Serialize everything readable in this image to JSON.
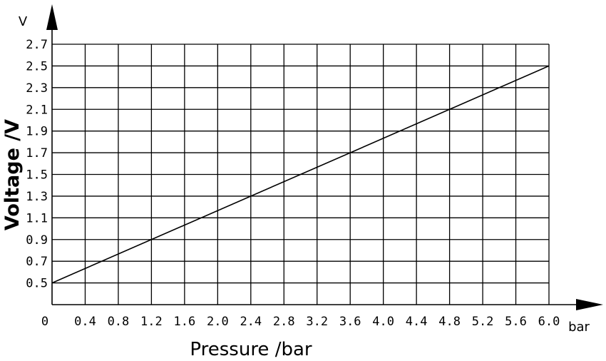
{
  "chart_data": {
    "type": "line",
    "title": "",
    "xlabel": "Pressure /bar",
    "ylabel": "Voltage /V",
    "x_unit": "bar",
    "y_unit": "V",
    "xlim": [
      0,
      6.0
    ],
    "ylim": [
      0.3,
      2.7
    ],
    "x_ticks": [
      "0",
      "0.4",
      "0.8",
      "1.2",
      "1.6",
      "2.0",
      "2.4",
      "2.8",
      "3.2",
      "3.6",
      "4.0",
      "4.4",
      "4.8",
      "5.2",
      "5.6",
      "6.0"
    ],
    "y_ticks": [
      "0.5",
      "0.7",
      "0.9",
      "1.1",
      "1.3",
      "1.5",
      "1.7",
      "1.9",
      "2.1",
      "2.3",
      "2.5",
      "2.7"
    ],
    "grid": true,
    "series": [
      {
        "x": [
          0,
          6.0
        ],
        "y": [
          0.5,
          2.5
        ]
      }
    ]
  }
}
